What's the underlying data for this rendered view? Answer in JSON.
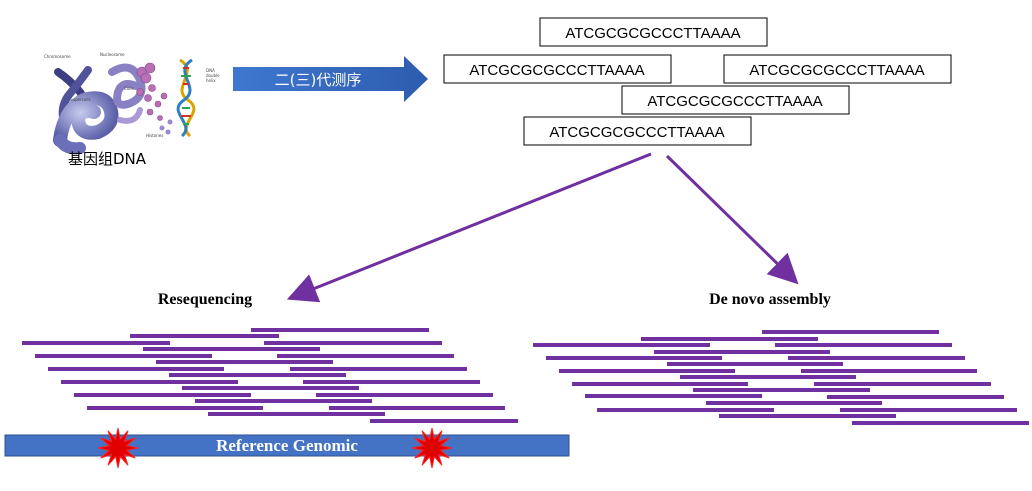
{
  "dna_figure": {
    "caption": "基因组DNA",
    "tiny_labels": [
      "Chromosome",
      "Nucleosome",
      "Supercoils",
      "Coils",
      "Histones",
      "DNA",
      "double",
      "helix"
    ]
  },
  "sequencing_arrow": {
    "label": "二(三)代测序"
  },
  "reads": {
    "items": [
      "ATCGCGCGCCCTTAAAA",
      "ATCGCGCGCCCTTAAAA",
      "ATCGCGCGCCCTTAAAA",
      "ATCGCGCGCCCTTAAAA",
      "ATCGCGCGCCCTTAAAA"
    ]
  },
  "resequencing": {
    "title": "Resequencing",
    "reference_label": "Reference Genomic"
  },
  "denovo": {
    "title": "De novo assembly"
  },
  "colors": {
    "read_bar": "#7030a0",
    "reference_bar": "#4472c4",
    "flow_arrow": "#7030a0",
    "seq_arrow_start": "#3a6fc4",
    "seq_arrow_end": "#2e5fb0",
    "variant_star": "#e00000"
  }
}
